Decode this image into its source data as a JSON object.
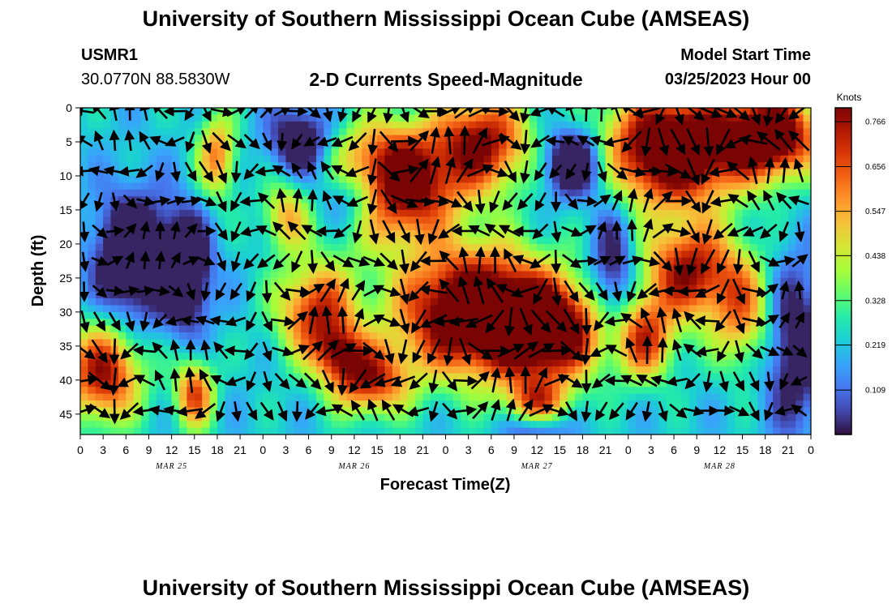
{
  "page_title": "University of Southern Mississippi Ocean Cube (AMSEAS)",
  "station_id": "USMR1",
  "station_coords": "30.0770N  88.5830W",
  "chart_subtitle": "2-D Currents Speed-Magnitude",
  "model_start_label": "Model Start Time",
  "model_start_value": "03/25/2023 Hour 00",
  "footer_title": "University of Southern Mississippi Ocean Cube (AMSEAS)",
  "chart_data": {
    "type": "heatmap",
    "title": "2-D Currents Speed-Magnitude",
    "xlabel": "Forecast Time(Z)",
    "ylabel": "Depth (ft)",
    "x_ticks": [
      "0",
      "3",
      "6",
      "9",
      "12",
      "15",
      "18",
      "21",
      "0",
      "3",
      "6",
      "9",
      "12",
      "15",
      "18",
      "21",
      "0",
      "3",
      "6",
      "9",
      "12",
      "15",
      "18",
      "21",
      "0",
      "3",
      "6",
      "9",
      "12",
      "15",
      "18",
      "21",
      "0"
    ],
    "date_labels": [
      {
        "label": "MAR 25",
        "hour": 12
      },
      {
        "label": "MAR 26",
        "hour": 36
      },
      {
        "label": "MAR 27",
        "hour": 60
      },
      {
        "label": "MAR 28",
        "hour": 84
      }
    ],
    "x_range_hours": [
      0,
      96
    ],
    "y_ticks": [
      0,
      5,
      10,
      15,
      20,
      25,
      30,
      35,
      40,
      45
    ],
    "y_range_ft": [
      0,
      48
    ],
    "colorbar": {
      "unit": "Knots",
      "ticks": [
        "0.766",
        "0.656",
        "0.547",
        "0.438",
        "0.328",
        "0.219",
        "0.109"
      ],
      "range": [
        0,
        0.8
      ]
    },
    "hotspots": [
      {
        "t": 41,
        "d": 11,
        "st": 8,
        "sd": 8,
        "v": 0.78
      },
      {
        "t": 53,
        "d": 5,
        "st": 6,
        "sd": 7,
        "v": 0.55
      },
      {
        "t": 52,
        "d": 30,
        "st": 10,
        "sd": 9,
        "v": 0.82
      },
      {
        "t": 62,
        "d": 33,
        "st": 7,
        "sd": 7,
        "v": 0.6
      },
      {
        "t": 78,
        "d": 6,
        "st": 9,
        "sd": 8,
        "v": 0.82
      },
      {
        "t": 91,
        "d": 4,
        "st": 6,
        "sd": 6,
        "v": 0.7
      },
      {
        "t": 80,
        "d": 24,
        "st": 6,
        "sd": 7,
        "v": 0.55
      },
      {
        "t": 74,
        "d": 34,
        "st": 4,
        "sd": 6,
        "v": 0.45
      },
      {
        "t": 87,
        "d": 30,
        "st": 4,
        "sd": 8,
        "v": 0.35
      },
      {
        "t": 31,
        "d": 30,
        "st": 5,
        "sd": 7,
        "v": 0.5
      },
      {
        "t": 34,
        "d": 36,
        "st": 3,
        "sd": 4,
        "v": 0.35
      },
      {
        "t": 38,
        "d": 40,
        "st": 5,
        "sd": 5,
        "v": 0.5
      },
      {
        "t": 3,
        "d": 39,
        "st": 5,
        "sd": 7,
        "v": 0.55
      },
      {
        "t": 15,
        "d": 42,
        "st": 2.5,
        "sd": 5,
        "v": 0.45
      },
      {
        "t": 18,
        "d": 7,
        "st": 2.5,
        "sd": 6,
        "v": 0.38
      },
      {
        "t": 27,
        "d": 16,
        "st": 3,
        "sd": 5,
        "v": 0.3
      },
      {
        "t": 60,
        "d": 44,
        "st": 4,
        "sd": 4,
        "v": 0.45
      }
    ],
    "coldspots": [
      {
        "t": 7,
        "d": 22,
        "st": 5,
        "sd": 9,
        "v": 0.42
      },
      {
        "t": 14,
        "d": 24,
        "st": 3,
        "sd": 8,
        "v": 0.42
      },
      {
        "t": 29,
        "d": 5,
        "st": 4,
        "sd": 5,
        "v": 0.35
      },
      {
        "t": 36,
        "d": 13,
        "st": 5,
        "sd": 5,
        "v": 0.4
      },
      {
        "t": 65,
        "d": 8,
        "st": 4,
        "sd": 5,
        "v": 0.45
      },
      {
        "t": 70,
        "d": 25,
        "st": 3,
        "sd": 10,
        "v": 0.3
      },
      {
        "t": 94,
        "d": 35,
        "st": 4,
        "sd": 12,
        "v": 0.3
      },
      {
        "t": 60,
        "d": 47,
        "st": 4,
        "sd": 3,
        "v": 0.35
      }
    ],
    "background_speed": 0.22,
    "vector_grid": {
      "dt_hours": 2,
      "ddepth_ft": 4.4,
      "t_start": 0.5,
      "d_start": 0.5
    }
  }
}
